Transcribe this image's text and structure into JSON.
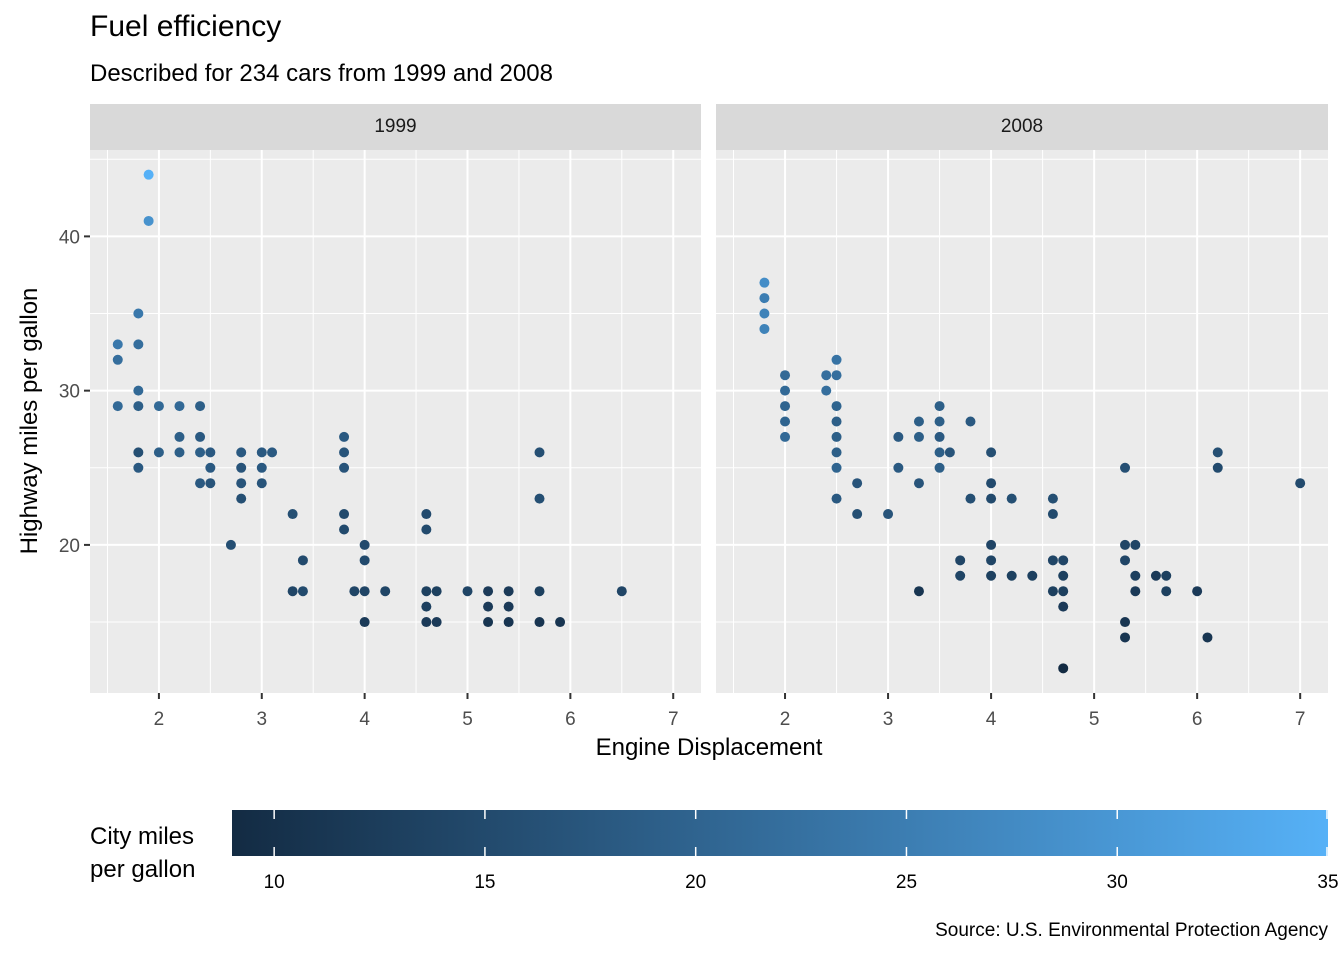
{
  "chart_data": {
    "type": "scatter",
    "title": "Fuel efficiency",
    "subtitle": "Described for 234 cars from 1999 and 2008",
    "xlabel": "Engine Displacement",
    "ylabel": "Highway miles per gallon",
    "caption": "Source: U.S. Environmental Protection Agency",
    "xlim": [
      1.33,
      7.27
    ],
    "ylim": [
      10.4,
      45.6
    ],
    "x_ticks": [
      2,
      3,
      4,
      5,
      6,
      7
    ],
    "y_ticks": [
      20,
      30,
      40
    ],
    "grid": true,
    "legend": {
      "title": "City miles\nper gallon",
      "position": "bottom",
      "type": "colorbar",
      "range": [
        9,
        35
      ],
      "ticks": [
        10,
        15,
        20,
        25,
        30,
        35
      ],
      "low_color": "#132B43",
      "high_color": "#56B1F7"
    },
    "facets": [
      {
        "label": "1999",
        "points": [
          [
            1.6,
            33,
            24
          ],
          [
            1.6,
            32,
            22
          ],
          [
            1.6,
            29,
            21
          ],
          [
            1.8,
            35,
            24
          ],
          [
            1.8,
            33,
            22
          ],
          [
            1.8,
            30,
            21
          ],
          [
            1.8,
            29,
            19
          ],
          [
            1.8,
            26,
            16
          ],
          [
            1.8,
            25,
            18
          ],
          [
            1.9,
            44,
            35
          ],
          [
            1.9,
            41,
            29
          ],
          [
            2.0,
            29,
            21
          ],
          [
            2.0,
            26,
            19
          ],
          [
            2.2,
            29,
            21
          ],
          [
            2.2,
            27,
            19
          ],
          [
            2.2,
            26,
            19
          ],
          [
            2.4,
            29,
            19
          ],
          [
            2.4,
            27,
            18
          ],
          [
            2.4,
            26,
            19
          ],
          [
            2.4,
            24,
            18
          ],
          [
            2.5,
            26,
            18
          ],
          [
            2.5,
            25,
            18
          ],
          [
            2.5,
            24,
            17
          ],
          [
            2.7,
            20,
            16
          ],
          [
            2.8,
            26,
            18
          ],
          [
            2.8,
            25,
            17
          ],
          [
            2.8,
            24,
            17
          ],
          [
            2.8,
            23,
            16
          ],
          [
            3.0,
            26,
            18
          ],
          [
            3.0,
            25,
            18
          ],
          [
            3.0,
            24,
            17
          ],
          [
            3.1,
            26,
            18
          ],
          [
            3.3,
            22,
            16
          ],
          [
            3.3,
            17,
            14
          ],
          [
            3.4,
            19,
            15
          ],
          [
            3.4,
            17,
            15
          ],
          [
            3.8,
            27,
            18
          ],
          [
            3.8,
            26,
            17
          ],
          [
            3.8,
            25,
            17
          ],
          [
            3.8,
            22,
            15
          ],
          [
            3.8,
            21,
            15
          ],
          [
            3.9,
            17,
            14
          ],
          [
            4.0,
            20,
            15
          ],
          [
            4.0,
            19,
            15
          ],
          [
            4.0,
            17,
            14
          ],
          [
            4.0,
            15,
            12
          ],
          [
            4.2,
            17,
            14
          ],
          [
            4.6,
            22,
            15
          ],
          [
            4.6,
            21,
            15
          ],
          [
            4.6,
            17,
            13
          ],
          [
            4.6,
            16,
            13
          ],
          [
            4.6,
            15,
            12
          ],
          [
            4.7,
            17,
            13
          ],
          [
            4.7,
            15,
            12
          ],
          [
            5.0,
            17,
            14
          ],
          [
            5.2,
            17,
            12
          ],
          [
            5.2,
            16,
            12
          ],
          [
            5.2,
            15,
            11
          ],
          [
            5.4,
            17,
            12
          ],
          [
            5.4,
            16,
            12
          ],
          [
            5.4,
            15,
            11
          ],
          [
            5.7,
            26,
            16
          ],
          [
            5.7,
            23,
            16
          ],
          [
            5.7,
            17,
            13
          ],
          [
            5.7,
            15,
            11
          ],
          [
            5.9,
            15,
            11
          ],
          [
            6.5,
            17,
            14
          ]
        ]
      },
      {
        "label": "2008",
        "points": [
          [
            1.8,
            37,
            28
          ],
          [
            1.8,
            36,
            25
          ],
          [
            1.8,
            35,
            26
          ],
          [
            1.8,
            34,
            26
          ],
          [
            2.0,
            31,
            21
          ],
          [
            2.0,
            30,
            21
          ],
          [
            2.0,
            29,
            20
          ],
          [
            2.0,
            28,
            20
          ],
          [
            2.0,
            27,
            21
          ],
          [
            2.4,
            31,
            22
          ],
          [
            2.4,
            30,
            22
          ],
          [
            2.5,
            32,
            23
          ],
          [
            2.5,
            31,
            22
          ],
          [
            2.5,
            29,
            20
          ],
          [
            2.5,
            28,
            19
          ],
          [
            2.5,
            27,
            19
          ],
          [
            2.5,
            26,
            19
          ],
          [
            2.5,
            25,
            20
          ],
          [
            2.5,
            23,
            18
          ],
          [
            2.7,
            24,
            17
          ],
          [
            2.7,
            22,
            16
          ],
          [
            3.0,
            22,
            17
          ],
          [
            3.1,
            27,
            18
          ],
          [
            3.1,
            25,
            18
          ],
          [
            3.3,
            28,
            19
          ],
          [
            3.3,
            27,
            19
          ],
          [
            3.3,
            24,
            17
          ],
          [
            3.3,
            17,
            11
          ],
          [
            3.5,
            29,
            19
          ],
          [
            3.5,
            28,
            19
          ],
          [
            3.5,
            27,
            18
          ],
          [
            3.5,
            26,
            19
          ],
          [
            3.5,
            25,
            19
          ],
          [
            3.6,
            26,
            17
          ],
          [
            3.7,
            19,
            14
          ],
          [
            3.7,
            18,
            14
          ],
          [
            3.8,
            28,
            18
          ],
          [
            3.8,
            23,
            16
          ],
          [
            4.0,
            26,
            16
          ],
          [
            4.0,
            24,
            15
          ],
          [
            4.0,
            23,
            15
          ],
          [
            4.0,
            20,
            14
          ],
          [
            4.0,
            19,
            14
          ],
          [
            4.0,
            18,
            13
          ],
          [
            4.2,
            23,
            16
          ],
          [
            4.2,
            18,
            13
          ],
          [
            4.4,
            18,
            13
          ],
          [
            4.6,
            23,
            16
          ],
          [
            4.6,
            22,
            15
          ],
          [
            4.6,
            19,
            14
          ],
          [
            4.6,
            17,
            13
          ],
          [
            4.7,
            19,
            14
          ],
          [
            4.7,
            18,
            13
          ],
          [
            4.7,
            17,
            13
          ],
          [
            4.7,
            16,
            12
          ],
          [
            4.7,
            12,
            9
          ],
          [
            5.3,
            25,
            16
          ],
          [
            5.3,
            20,
            14
          ],
          [
            5.3,
            19,
            14
          ],
          [
            5.3,
            15,
            11
          ],
          [
            5.3,
            14,
            11
          ],
          [
            5.4,
            20,
            14
          ],
          [
            5.4,
            18,
            13
          ],
          [
            5.4,
            17,
            12
          ],
          [
            5.6,
            18,
            12
          ],
          [
            5.7,
            18,
            13
          ],
          [
            5.7,
            17,
            13
          ],
          [
            6.0,
            17,
            12
          ],
          [
            6.1,
            14,
            11
          ],
          [
            6.2,
            26,
            16
          ],
          [
            6.2,
            25,
            15
          ],
          [
            7.0,
            24,
            15
          ]
        ]
      }
    ]
  }
}
